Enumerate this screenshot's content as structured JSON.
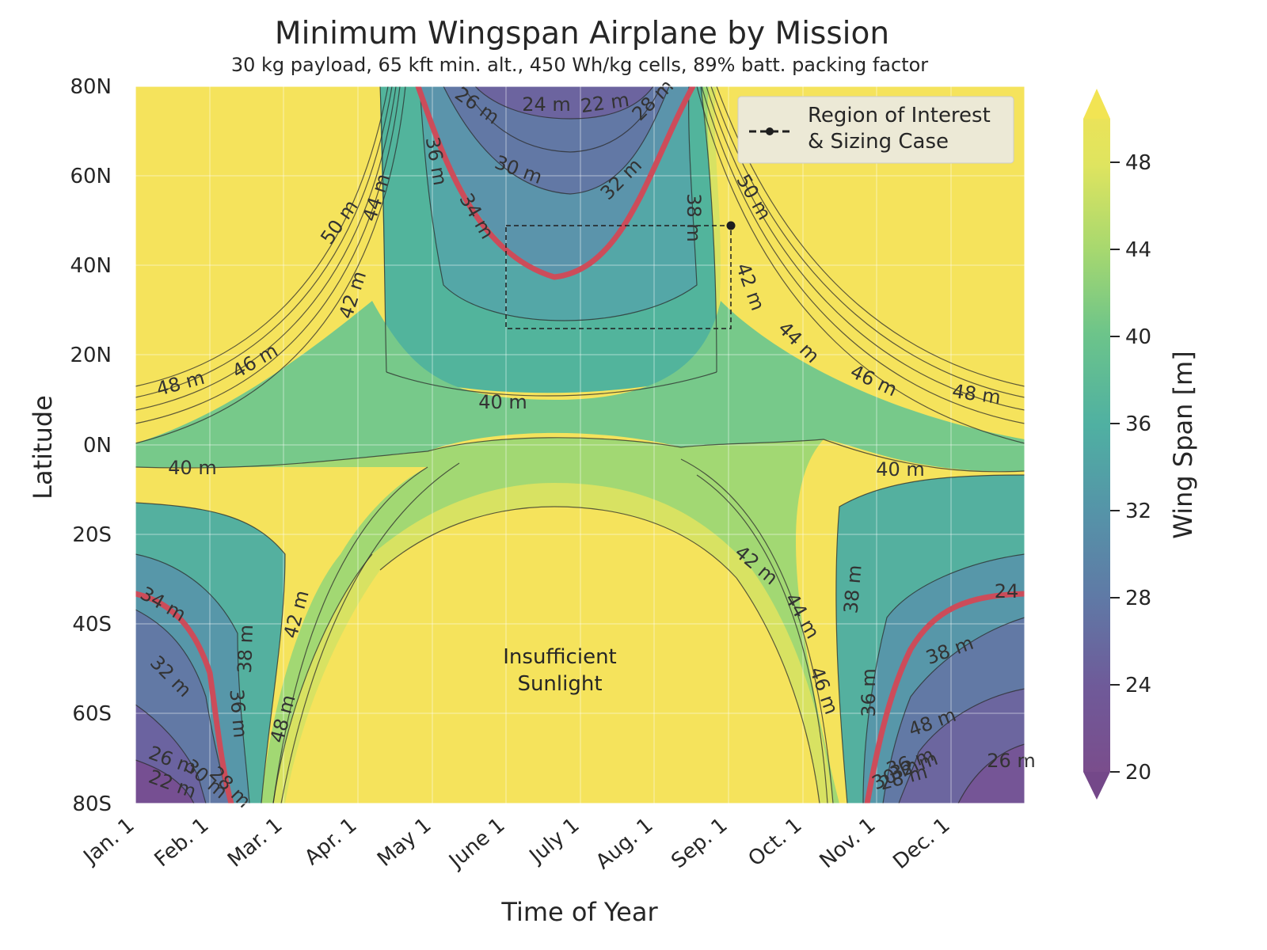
{
  "chart_data": {
    "type": "contour",
    "title": "Minimum Wingspan Airplane by Mission",
    "subtitle": "30 kg payload, 65 kft min. alt., 450 Wh/kg cells, 89% batt. packing factor",
    "xlabel": "Time of Year",
    "ylabel": "Latitude",
    "x_ticks": [
      "Jan. 1",
      "Feb. 1",
      "Mar. 1",
      "Apr. 1",
      "May 1",
      "June 1",
      "July 1",
      "Aug. 1",
      "Sep. 1",
      "Oct. 1",
      "Nov. 1",
      "Dec. 1"
    ],
    "y_ticks": [
      "80N",
      "60N",
      "40N",
      "20N",
      "0N",
      "20S",
      "40S",
      "60S",
      "80S"
    ],
    "y_tick_values": [
      80,
      60,
      40,
      20,
      0,
      -20,
      -40,
      -60,
      -80
    ],
    "ylim": [
      -80,
      80
    ],
    "grid": true,
    "colorbar": {
      "label": "Wing Span [m]",
      "ticks": [
        20,
        24,
        28,
        32,
        36,
        40,
        44,
        48
      ],
      "range": [
        20,
        50
      ],
      "colormap": "viridis",
      "extend": "both"
    },
    "contour_levels_m": [
      22,
      24,
      26,
      28,
      30,
      32,
      34,
      36,
      38,
      40,
      42,
      44,
      46,
      48,
      50
    ],
    "contour_labels": [
      "24 m",
      "22 m",
      "26 m",
      "28 m",
      "30 m",
      "32 m",
      "34 m",
      "36 m",
      "38 m",
      "40 m",
      "42 m",
      "44 m",
      "46 m",
      "48 m",
      "50 m",
      "40 m",
      "50 m",
      "44 m",
      "46 m",
      "36 m",
      "38 m",
      "42 m",
      "48 m",
      "40 m",
      "42 m",
      "44 m",
      "46 m",
      "48 m",
      "34 m",
      "32 m",
      "36 m",
      "38 m",
      "42 m",
      "48 m",
      "30 m",
      "26 m",
      "22 m",
      "28 m",
      "38 m",
      "36 m",
      "32 m",
      "30 m",
      "28 m",
      "26 m",
      "24",
      "34",
      "32 m",
      "50 m"
    ],
    "highlight_contour": {
      "value_m": 34,
      "color": "#cc4c5a"
    },
    "region_of_interest": {
      "time": [
        "June 1",
        "Sep. 1"
      ],
      "latitude": [
        26,
        49
      ]
    },
    "sizing_case": {
      "time": "Sep. 1",
      "latitude": 49
    },
    "legend": {
      "entries": [
        "Region of Interest",
        "& Sizing Case"
      ],
      "position": "top-right"
    },
    "annotations": [
      "Insufficient",
      "Sunlight"
    ]
  }
}
